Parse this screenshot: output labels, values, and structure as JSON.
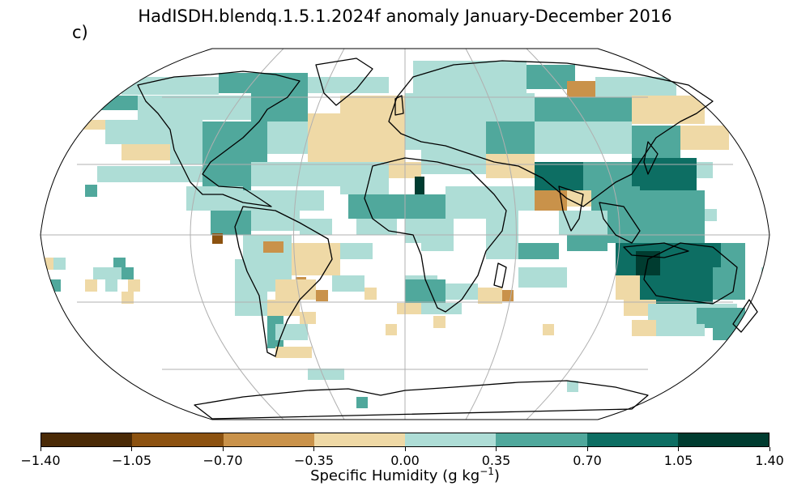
{
  "title": "HadISDH.blendq.1.5.1.2024f anomaly January-December 2016",
  "panel_label": "c)",
  "colorbar": {
    "label_main": "Specific Humidity (g kg",
    "label_exp": "−1",
    "label_close": ")",
    "ticks": [
      "−1.40",
      "−1.05",
      "−0.70",
      "−0.35",
      "0.00",
      "0.35",
      "0.70",
      "1.05",
      "1.40"
    ],
    "colors": [
      "#4a2a06",
      "#8c5210",
      "#c9924a",
      "#efd9a6",
      "#aeddd6",
      "#50a89c",
      "#0d6e63",
      "#003c30"
    ]
  },
  "map": {
    "projection": "Robinson",
    "land_outline_color": "#000000",
    "gridline_color": "#b0b0b0"
  }
}
